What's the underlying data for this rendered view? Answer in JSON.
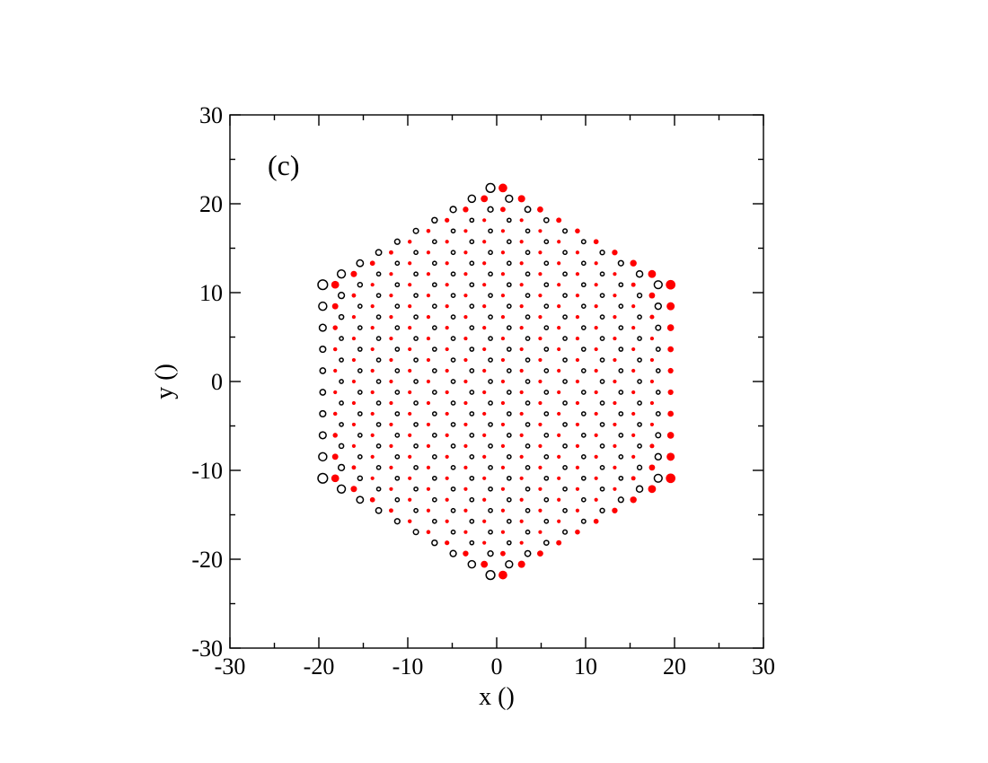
{
  "chart_data": {
    "type": "scatter",
    "title": "",
    "panel_label": "(c)",
    "xlabel": "x ()",
    "ylabel": "y ()",
    "xlim": [
      -30,
      30
    ],
    "ylim": [
      -30,
      30
    ],
    "xticks": [
      -30,
      -20,
      -10,
      0,
      10,
      20,
      30
    ],
    "yticks": [
      -30,
      -20,
      -10,
      0,
      10,
      20,
      30
    ],
    "xtick_labels": [
      "-30",
      "-20",
      "-10",
      "0",
      "10",
      "20",
      "30"
    ],
    "ytick_labels": [
      "-30",
      "-20",
      "-10",
      "0",
      "10",
      "20",
      "30"
    ],
    "grid": false,
    "lattice": {
      "description_shape": "hexagon",
      "a_spacing": 2.42,
      "nearest_neighbor": 1.4,
      "range": 9,
      "colors": {
        "A": "#ff0000",
        "B": "#000000"
      },
      "A_marker": "filled",
      "B_marker": "open",
      "edge_highlight": {
        "A": "upper-left edge, lower-left edge, right edge",
        "B": "upper-right edge, lower-right edge, left edge"
      }
    }
  }
}
